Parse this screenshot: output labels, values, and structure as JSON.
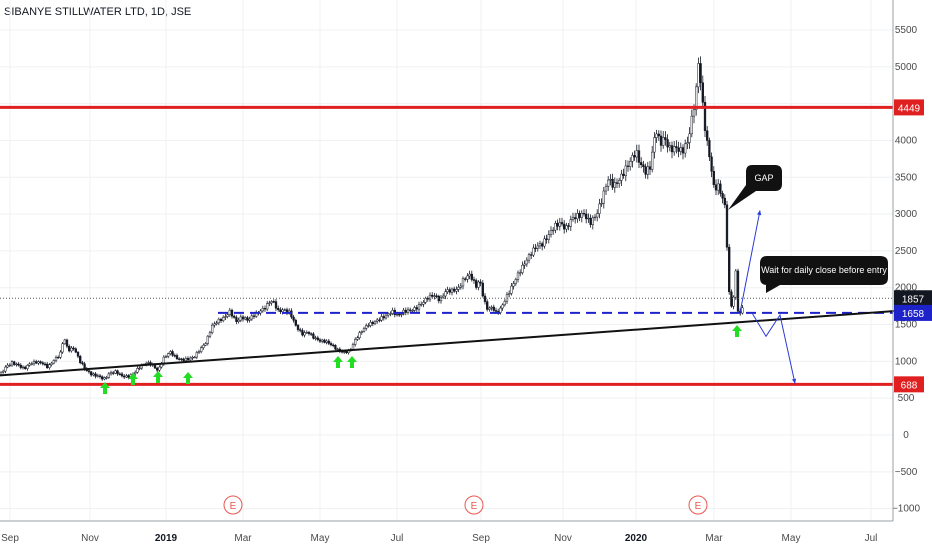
{
  "header": {
    "title": "SIBANYE STILLWATER LTD, 1D, JSE"
  },
  "chart_data": {
    "type": "candlestick",
    "title": "SIBANYE STILLWATER LTD, 1D, JSE",
    "y_axis": {
      "ticks": [
        "5500",
        "5000",
        "4500",
        "4000",
        "3500",
        "3000",
        "2500",
        "2000",
        "1500",
        "1000",
        "500",
        "0",
        "−500",
        "−1000"
      ],
      "ylim": [
        -1050,
        5850
      ]
    },
    "x_axis": {
      "ticks": [
        {
          "label": "Sep",
          "bold": false
        },
        {
          "label": "Nov",
          "bold": false
        },
        {
          "label": "2019",
          "bold": true
        },
        {
          "label": "Mar",
          "bold": false
        },
        {
          "label": "May",
          "bold": false
        },
        {
          "label": "Jul",
          "bold": false
        },
        {
          "label": "Sep",
          "bold": false
        },
        {
          "label": "Nov",
          "bold": false
        },
        {
          "label": "2020",
          "bold": true
        },
        {
          "label": "Mar",
          "bold": false
        },
        {
          "label": "May",
          "bold": false
        },
        {
          "label": "Jul",
          "bold": false
        }
      ]
    },
    "price_path": [
      [
        0,
        820
      ],
      [
        6,
        930
      ],
      [
        12,
        980
      ],
      [
        18,
        950
      ],
      [
        24,
        900
      ],
      [
        30,
        970
      ],
      [
        36,
        990
      ],
      [
        42,
        980
      ],
      [
        48,
        920
      ],
      [
        54,
        1020
      ],
      [
        60,
        1090
      ],
      [
        64,
        1330
      ],
      [
        68,
        1150
      ],
      [
        74,
        1180
      ],
      [
        80,
        1000
      ],
      [
        86,
        880
      ],
      [
        92,
        820
      ],
      [
        98,
        800
      ],
      [
        104,
        760
      ],
      [
        110,
        840
      ],
      [
        116,
        860
      ],
      [
        122,
        800
      ],
      [
        128,
        790
      ],
      [
        134,
        840
      ],
      [
        140,
        930
      ],
      [
        146,
        980
      ],
      [
        152,
        960
      ],
      [
        158,
        870
      ],
      [
        164,
        1050
      ],
      [
        170,
        1130
      ],
      [
        176,
        1050
      ],
      [
        182,
        1020
      ],
      [
        188,
        1030
      ],
      [
        194,
        1060
      ],
      [
        200,
        1160
      ],
      [
        206,
        1260
      ],
      [
        212,
        1480
      ],
      [
        218,
        1550
      ],
      [
        224,
        1590
      ],
      [
        230,
        1680
      ],
      [
        236,
        1540
      ],
      [
        242,
        1600
      ],
      [
        248,
        1560
      ],
      [
        254,
        1630
      ],
      [
        260,
        1680
      ],
      [
        266,
        1740
      ],
      [
        270,
        1820
      ],
      [
        274,
        1800
      ],
      [
        278,
        1680
      ],
      [
        284,
        1700
      ],
      [
        290,
        1660
      ],
      [
        296,
        1480
      ],
      [
        302,
        1370
      ],
      [
        308,
        1400
      ],
      [
        314,
        1320
      ],
      [
        320,
        1280
      ],
      [
        326,
        1270
      ],
      [
        332,
        1220
      ],
      [
        338,
        1150
      ],
      [
        344,
        1120
      ],
      [
        350,
        1150
      ],
      [
        356,
        1310
      ],
      [
        362,
        1420
      ],
      [
        368,
        1500
      ],
      [
        374,
        1530
      ],
      [
        380,
        1580
      ],
      [
        386,
        1620
      ],
      [
        392,
        1680
      ],
      [
        398,
        1620
      ],
      [
        404,
        1680
      ],
      [
        410,
        1690
      ],
      [
        416,
        1720
      ],
      [
        422,
        1790
      ],
      [
        428,
        1870
      ],
      [
        434,
        1900
      ],
      [
        440,
        1830
      ],
      [
        446,
        1960
      ],
      [
        452,
        1960
      ],
      [
        458,
        1980
      ],
      [
        464,
        2120
      ],
      [
        470,
        2180
      ],
      [
        476,
        2020
      ],
      [
        480,
        2100
      ],
      [
        484,
        1820
      ],
      [
        488,
        1700
      ],
      [
        492,
        1740
      ],
      [
        496,
        1660
      ],
      [
        500,
        1700
      ],
      [
        506,
        1860
      ],
      [
        512,
        2020
      ],
      [
        518,
        2180
      ],
      [
        524,
        2320
      ],
      [
        530,
        2450
      ],
      [
        536,
        2560
      ],
      [
        542,
        2590
      ],
      [
        548,
        2700
      ],
      [
        554,
        2830
      ],
      [
        560,
        2880
      ],
      [
        566,
        2800
      ],
      [
        572,
        2940
      ],
      [
        578,
        2980
      ],
      [
        584,
        3000
      ],
      [
        590,
        2880
      ],
      [
        596,
        2980
      ],
      [
        602,
        3200
      ],
      [
        608,
        3480
      ],
      [
        614,
        3380
      ],
      [
        620,
        3480
      ],
      [
        626,
        3620
      ],
      [
        632,
        3760
      ],
      [
        636,
        3850
      ],
      [
        640,
        3690
      ],
      [
        646,
        3570
      ],
      [
        650,
        3640
      ],
      [
        656,
        4160
      ],
      [
        660,
        3950
      ],
      [
        664,
        4040
      ],
      [
        670,
        3880
      ],
      [
        676,
        3900
      ],
      [
        682,
        3850
      ],
      [
        688,
        3990
      ],
      [
        692,
        4300
      ],
      [
        696,
        4640
      ],
      [
        698,
        5100
      ],
      [
        700,
        4900
      ],
      [
        702,
        4580
      ],
      [
        706,
        4050
      ],
      [
        710,
        3750
      ],
      [
        714,
        3350
      ],
      [
        718,
        3380
      ],
      [
        722,
        3250
      ],
      [
        726,
        3040
      ],
      [
        728,
        2120
      ],
      [
        730,
        1790
      ],
      [
        732,
        1750
      ],
      [
        734,
        1900
      ],
      [
        736,
        2250
      ],
      [
        738,
        1700
      ],
      [
        740,
        1620
      ],
      [
        742,
        1780
      ],
      [
        744,
        1600
      ]
    ],
    "horizontal_levels": [
      {
        "value": 4449,
        "label": "4449",
        "color": "#e02020"
      },
      {
        "value": 688,
        "label": "688",
        "color": "#e02020"
      }
    ],
    "dashed_level": {
      "value": 1658,
      "label": "1658",
      "color": "#1e22c9"
    },
    "current_price": {
      "value": 1857,
      "label": "1857",
      "color": "#131722"
    },
    "trendline": {
      "from": [
        0,
        810
      ],
      "to": [
        932,
        1720
      ],
      "color": "#111111"
    },
    "arrow_markers_x": [
      105,
      133,
      158,
      188,
      338,
      352,
      737
    ],
    "earnings_markers_x": [
      233,
      474,
      698
    ],
    "earnings_label": "E",
    "projection_up": [
      [
        740,
        1660
      ],
      [
        760,
        3050
      ]
    ],
    "projection_down": [
      [
        752,
        1658
      ],
      [
        766,
        1340
      ],
      [
        780,
        1630
      ],
      [
        795,
        700
      ]
    ],
    "annotations": [
      {
        "text": "GAP",
        "anchor": "gap"
      },
      {
        "text": "Wait for daily close before entry",
        "anchor": "entry"
      }
    ],
    "colors": {
      "candle": "#131722",
      "resistance": "#e02020",
      "level": "#1e22c9",
      "up_arrow": "#22dd22",
      "earnings": "#e8574e",
      "projection": "#2a3ad6"
    }
  }
}
